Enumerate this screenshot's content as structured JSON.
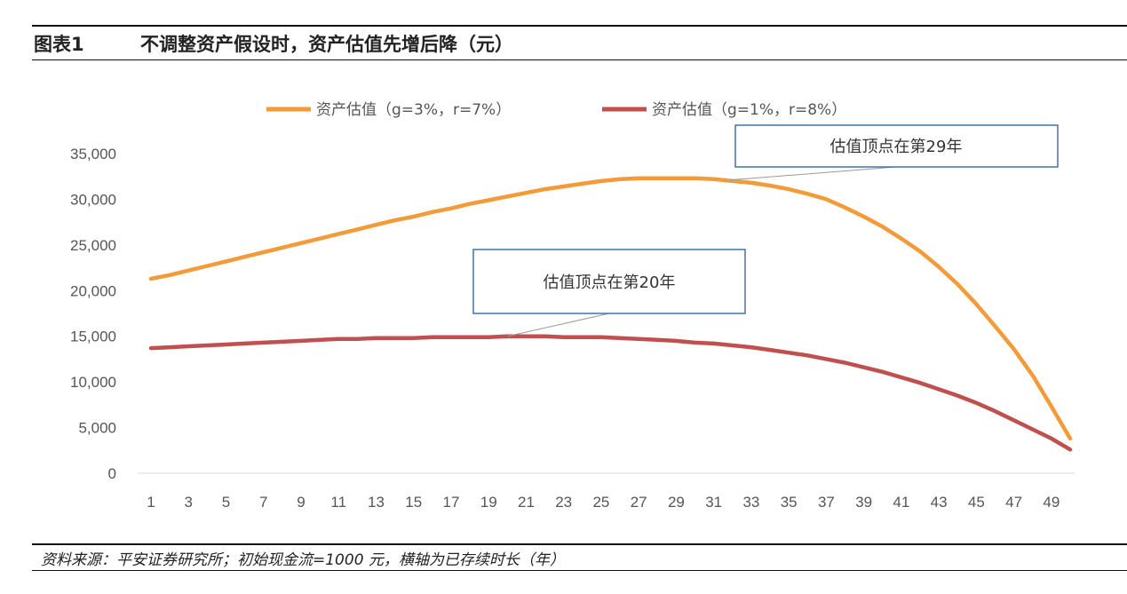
{
  "header": {
    "figure_no": "图表1",
    "title": "不调整资产假设时，资产估值先增后降（元）"
  },
  "footer": {
    "source": "资料来源：平安证券研究所；初始现金流=1000 元，横轴为已存续时长（年）"
  },
  "colors": {
    "orange": "#F29B38",
    "red": "#C0504D",
    "box_border": "#4472A6"
  },
  "chart_data": {
    "type": "line",
    "x": [
      1,
      2,
      3,
      4,
      5,
      6,
      7,
      8,
      9,
      10,
      11,
      12,
      13,
      14,
      15,
      16,
      17,
      18,
      19,
      20,
      21,
      22,
      23,
      24,
      25,
      26,
      27,
      28,
      29,
      30,
      31,
      32,
      33,
      34,
      35,
      36,
      37,
      38,
      39,
      40,
      41,
      42,
      43,
      44,
      45,
      46,
      47,
      48,
      49,
      50
    ],
    "x_tick_labels": [
      "1",
      "3",
      "5",
      "7",
      "9",
      "11",
      "13",
      "15",
      "17",
      "19",
      "21",
      "23",
      "25",
      "27",
      "29",
      "31",
      "33",
      "35",
      "37",
      "39",
      "41",
      "43",
      "45",
      "47",
      "49"
    ],
    "y_tick_labels": [
      "0",
      "5,000",
      "10,000",
      "15,000",
      "20,000",
      "25,000",
      "30,000",
      "35,000"
    ],
    "ylim": [
      0,
      35000
    ],
    "grid": false,
    "legend_position": "top",
    "series": [
      {
        "name": "资产估值（g=3%，r=7%）",
        "color": "orange",
        "values": [
          21300,
          21700,
          22200,
          22700,
          23200,
          23700,
          24200,
          24700,
          25200,
          25700,
          26200,
          26700,
          27200,
          27700,
          28100,
          28600,
          29000,
          29500,
          29900,
          30300,
          30700,
          31100,
          31400,
          31700,
          32000,
          32200,
          32300,
          32300,
          32300,
          32300,
          32200,
          32000,
          31800,
          31500,
          31100,
          30600,
          30000,
          29100,
          28100,
          27000,
          25700,
          24300,
          22600,
          20700,
          18500,
          16100,
          13600,
          10700,
          7300,
          3800
        ]
      },
      {
        "name": "资产估值（g=1%，r=8%）",
        "color": "red",
        "values": [
          13700,
          13800,
          13900,
          14000,
          14100,
          14200,
          14300,
          14400,
          14500,
          14600,
          14700,
          14700,
          14800,
          14800,
          14800,
          14900,
          14900,
          14900,
          14900,
          15000,
          15000,
          15000,
          14900,
          14900,
          14900,
          14800,
          14700,
          14600,
          14500,
          14300,
          14200,
          14000,
          13800,
          13500,
          13200,
          12900,
          12500,
          12100,
          11600,
          11100,
          10500,
          9900,
          9200,
          8500,
          7700,
          6800,
          5800,
          4800,
          3800,
          2600
        ]
      }
    ],
    "annotations": [
      {
        "text": "估值顶点在第29年",
        "x": 29,
        "y": 32300
      },
      {
        "text": "估值顶点在第20年",
        "x": 20,
        "y": 15000
      }
    ]
  }
}
